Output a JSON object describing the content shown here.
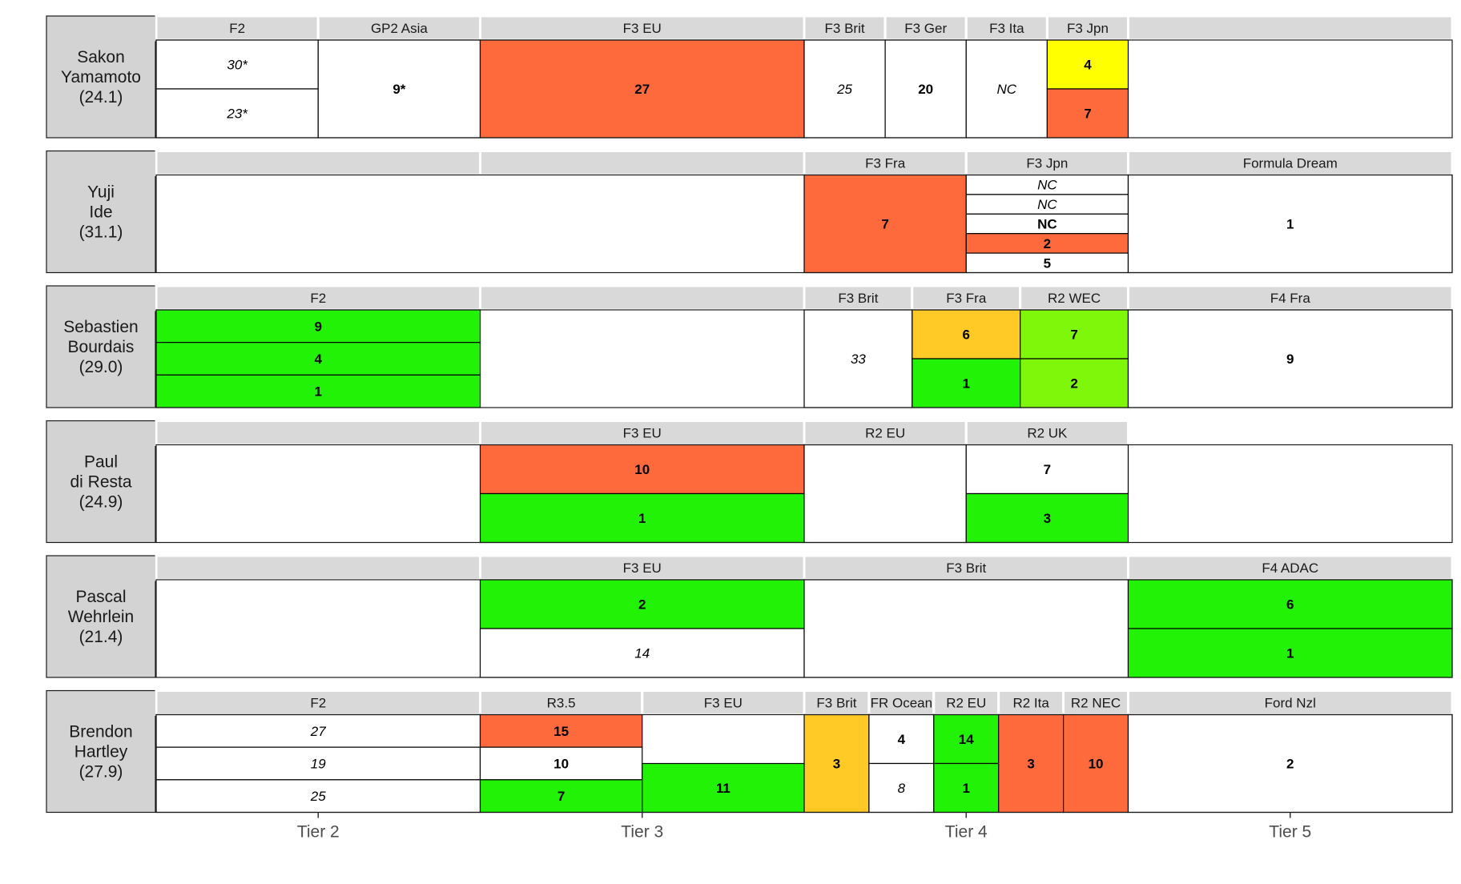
{
  "chart_data": {
    "type": "table",
    "x_axis": {
      "categories": [
        "Tier 2",
        "Tier 3",
        "Tier 4",
        "Tier 5"
      ]
    },
    "colors": {
      "orange": "#FF6A3D",
      "yellow": "#FFFF00",
      "gold": "#FFC926",
      "green": "#21F206",
      "lime": "#7FF70A",
      "white": "#FFFFFF",
      "strip": "#D9D9D9",
      "label_box": "#D3D3D3"
    },
    "drivers": [
      {
        "name_line1": "Sakon",
        "name_line2": "Yamamoto",
        "age": "(24.1)",
        "headers": [
          {
            "label": "F2",
            "from": 1.5,
            "to": 2.0
          },
          {
            "label": "GP2 Asia",
            "from": 2.0,
            "to": 2.5
          },
          {
            "label": "F3 EU",
            "from": 2.5,
            "to": 3.5
          },
          {
            "label": "F3 Brit",
            "from": 3.5,
            "to": 3.75
          },
          {
            "label": "F3 Ger",
            "from": 3.75,
            "to": 4.0
          },
          {
            "label": "F3 Ita",
            "from": 4.0,
            "to": 4.25
          },
          {
            "label": "F3 Jpn",
            "from": 4.25,
            "to": 4.5
          },
          {
            "label": "",
            "from": 4.5,
            "to": 5.5
          }
        ],
        "cells": [
          {
            "from": 1.5,
            "to": 2.0,
            "r0": 0,
            "r1": 0.5,
            "text": "30*",
            "style": "italic",
            "color": "white"
          },
          {
            "from": 1.5,
            "to": 2.0,
            "r0": 0.5,
            "r1": 1,
            "text": "23*",
            "style": "italic",
            "color": "white"
          },
          {
            "from": 2.0,
            "to": 2.5,
            "r0": 0,
            "r1": 1,
            "text": "9*",
            "style": "bold",
            "color": "white"
          },
          {
            "from": 2.5,
            "to": 3.5,
            "r0": 0,
            "r1": 1,
            "text": "27",
            "style": "bold",
            "color": "orange"
          },
          {
            "from": 3.5,
            "to": 3.75,
            "r0": 0,
            "r1": 1,
            "text": "25",
            "style": "italic",
            "color": "white"
          },
          {
            "from": 3.75,
            "to": 4.0,
            "r0": 0,
            "r1": 1,
            "text": "20",
            "style": "bold",
            "color": "white"
          },
          {
            "from": 4.0,
            "to": 4.25,
            "r0": 0,
            "r1": 1,
            "text": "NC",
            "style": "italic",
            "color": "white"
          },
          {
            "from": 4.25,
            "to": 4.5,
            "r0": 0,
            "r1": 0.5,
            "text": "4",
            "style": "bold",
            "color": "yellow"
          },
          {
            "from": 4.25,
            "to": 4.5,
            "r0": 0.5,
            "r1": 1,
            "text": "7",
            "style": "bold",
            "color": "orange"
          }
        ]
      },
      {
        "name_line1": "Yuji",
        "name_line2": "Ide",
        "age": "(31.1)",
        "headers": [
          {
            "label": "",
            "from": 1.5,
            "to": 2.5
          },
          {
            "label": "",
            "from": 2.5,
            "to": 3.5
          },
          {
            "label": "F3 Fra",
            "from": 3.5,
            "to": 4.0
          },
          {
            "label": "F3 Jpn",
            "from": 4.0,
            "to": 4.5
          },
          {
            "label": "Formula Dream",
            "from": 4.5,
            "to": 5.5
          }
        ],
        "cells": [
          {
            "from": 3.5,
            "to": 4.0,
            "r0": 0,
            "r1": 1,
            "text": "7",
            "style": "bold",
            "color": "orange"
          },
          {
            "from": 4.0,
            "to": 4.5,
            "r0": 0,
            "r1": 0.2,
            "text": "NC",
            "style": "italic",
            "color": "white"
          },
          {
            "from": 4.0,
            "to": 4.5,
            "r0": 0.2,
            "r1": 0.4,
            "text": "NC",
            "style": "italic",
            "color": "white"
          },
          {
            "from": 4.0,
            "to": 4.5,
            "r0": 0.4,
            "r1": 0.6,
            "text": "NC",
            "style": "bold",
            "color": "white"
          },
          {
            "from": 4.0,
            "to": 4.5,
            "r0": 0.6,
            "r1": 0.8,
            "text": "2",
            "style": "bold",
            "color": "orange"
          },
          {
            "from": 4.0,
            "to": 4.5,
            "r0": 0.8,
            "r1": 1,
            "text": "5",
            "style": "bold",
            "color": "white"
          },
          {
            "from": 4.5,
            "to": 5.5,
            "r0": 0,
            "r1": 1,
            "text": "1",
            "style": "bold",
            "color": "white"
          }
        ]
      },
      {
        "name_line1": "Sebastien",
        "name_line2": "Bourdais",
        "age": "(29.0)",
        "headers": [
          {
            "label": "F2",
            "from": 1.5,
            "to": 2.5
          },
          {
            "label": "",
            "from": 2.5,
            "to": 3.5
          },
          {
            "label": "F3 Brit",
            "from": 3.5,
            "to": 3.8333
          },
          {
            "label": "F3 Fra",
            "from": 3.8333,
            "to": 4.1667
          },
          {
            "label": "R2 WEC",
            "from": 4.1667,
            "to": 4.5
          },
          {
            "label": "F4 Fra",
            "from": 4.5,
            "to": 5.5
          }
        ],
        "cells": [
          {
            "from": 1.5,
            "to": 2.5,
            "r0": 0,
            "r1": 0.3333,
            "text": "9",
            "style": "bold",
            "color": "green"
          },
          {
            "from": 1.5,
            "to": 2.5,
            "r0": 0.3333,
            "r1": 0.6667,
            "text": "4",
            "style": "bold",
            "color": "green"
          },
          {
            "from": 1.5,
            "to": 2.5,
            "r0": 0.6667,
            "r1": 1,
            "text": "1",
            "style": "bold",
            "color": "green"
          },
          {
            "from": 3.5,
            "to": 3.8333,
            "r0": 0,
            "r1": 1,
            "text": "33",
            "style": "italic",
            "color": "white"
          },
          {
            "from": 3.8333,
            "to": 4.1667,
            "r0": 0,
            "r1": 0.5,
            "text": "6",
            "style": "bold",
            "color": "gold"
          },
          {
            "from": 3.8333,
            "to": 4.1667,
            "r0": 0.5,
            "r1": 1,
            "text": "1",
            "style": "bold",
            "color": "green"
          },
          {
            "from": 4.1667,
            "to": 4.5,
            "r0": 0,
            "r1": 0.5,
            "text": "7",
            "style": "bold",
            "color": "lime"
          },
          {
            "from": 4.1667,
            "to": 4.5,
            "r0": 0.5,
            "r1": 1,
            "text": "2",
            "style": "bold",
            "color": "lime"
          },
          {
            "from": 4.5,
            "to": 5.5,
            "r0": 0,
            "r1": 1,
            "text": "9",
            "style": "bold",
            "color": "white"
          }
        ]
      },
      {
        "name_line1": "Paul",
        "name_line2": "di Resta",
        "age": "(24.9)",
        "headers": [
          {
            "label": "",
            "from": 1.5,
            "to": 2.5
          },
          {
            "label": "F3 EU",
            "from": 2.5,
            "to": 3.5
          },
          {
            "label": "R2 EU",
            "from": 3.5,
            "to": 4.0
          },
          {
            "label": "R2 UK",
            "from": 4.0,
            "to": 4.5
          }
        ],
        "cells": [
          {
            "from": 2.5,
            "to": 3.5,
            "r0": 0,
            "r1": 0.5,
            "text": "10",
            "style": "bold",
            "color": "orange"
          },
          {
            "from": 2.5,
            "to": 3.5,
            "r0": 0.5,
            "r1": 1,
            "text": "1",
            "style": "bold",
            "color": "green"
          },
          {
            "from": 3.5,
            "to": 4.0,
            "r0": 0,
            "r1": 1,
            "text": "",
            "style": "bold",
            "color": "white"
          },
          {
            "from": 4.0,
            "to": 4.5,
            "r0": 0,
            "r1": 0.5,
            "text": "7",
            "style": "bold",
            "color": "white"
          },
          {
            "from": 4.0,
            "to": 4.5,
            "r0": 0.5,
            "r1": 1,
            "text": "3",
            "style": "bold",
            "color": "green"
          }
        ]
      },
      {
        "name_line1": "Pascal",
        "name_line2": "Wehrlein",
        "age": "(21.4)",
        "headers": [
          {
            "label": "",
            "from": 1.5,
            "to": 2.5
          },
          {
            "label": "F3 EU",
            "from": 2.5,
            "to": 3.5
          },
          {
            "label": "F3 Brit",
            "from": 3.5,
            "to": 4.5
          },
          {
            "label": "F4 ADAC",
            "from": 4.5,
            "to": 5.5
          }
        ],
        "cells": [
          {
            "from": 2.5,
            "to": 3.5,
            "r0": 0,
            "r1": 0.5,
            "text": "2",
            "style": "bold",
            "color": "green"
          },
          {
            "from": 2.5,
            "to": 3.5,
            "r0": 0.5,
            "r1": 1,
            "text": "14",
            "style": "italic",
            "color": "white"
          },
          {
            "from": 3.5,
            "to": 4.5,
            "r0": 0,
            "r1": 1,
            "text": "",
            "style": "bold",
            "color": "white"
          },
          {
            "from": 4.5,
            "to": 5.5,
            "r0": 0,
            "r1": 0.5,
            "text": "6",
            "style": "bold",
            "color": "green"
          },
          {
            "from": 4.5,
            "to": 5.5,
            "r0": 0.5,
            "r1": 1,
            "text": "1",
            "style": "bold",
            "color": "green"
          }
        ]
      },
      {
        "name_line1": "Brendon",
        "name_line2": "Hartley",
        "age": "(27.9)",
        "headers": [
          {
            "label": "F2",
            "from": 1.5,
            "to": 2.5
          },
          {
            "label": "R3.5",
            "from": 2.5,
            "to": 3.0
          },
          {
            "label": "F3 EU",
            "from": 3.0,
            "to": 3.5
          },
          {
            "label": "F3 Brit",
            "from": 3.5,
            "to": 3.7
          },
          {
            "label": "FR Ocean",
            "from": 3.7,
            "to": 3.9
          },
          {
            "label": "R2 EU",
            "from": 3.9,
            "to": 4.1
          },
          {
            "label": "R2 Ita",
            "from": 4.1,
            "to": 4.3
          },
          {
            "label": "R2 NEC",
            "from": 4.3,
            "to": 4.5
          },
          {
            "label": "Ford Nzl",
            "from": 4.5,
            "to": 5.5
          }
        ],
        "cells": [
          {
            "from": 1.5,
            "to": 2.5,
            "r0": 0,
            "r1": 0.3333,
            "text": "27",
            "style": "italic",
            "color": "white"
          },
          {
            "from": 1.5,
            "to": 2.5,
            "r0": 0.3333,
            "r1": 0.6667,
            "text": "19",
            "style": "italic",
            "color": "white"
          },
          {
            "from": 1.5,
            "to": 2.5,
            "r0": 0.6667,
            "r1": 1,
            "text": "25",
            "style": "italic",
            "color": "white"
          },
          {
            "from": 2.5,
            "to": 3.0,
            "r0": 0,
            "r1": 0.3333,
            "text": "15",
            "style": "bold",
            "color": "orange"
          },
          {
            "from": 2.5,
            "to": 3.0,
            "r0": 0.3333,
            "r1": 0.6667,
            "text": "10",
            "style": "bold",
            "color": "white"
          },
          {
            "from": 2.5,
            "to": 3.0,
            "r0": 0.6667,
            "r1": 1,
            "text": "7",
            "style": "bold",
            "color": "green"
          },
          {
            "from": 3.0,
            "to": 3.5,
            "r0": 0.5,
            "r1": 1,
            "text": "11",
            "style": "bold",
            "color": "green"
          },
          {
            "from": 3.5,
            "to": 3.7,
            "r0": 0,
            "r1": 1,
            "text": "3",
            "style": "bold",
            "color": "gold"
          },
          {
            "from": 3.7,
            "to": 3.9,
            "r0": 0,
            "r1": 0.5,
            "text": "4",
            "style": "bold",
            "color": "white"
          },
          {
            "from": 3.7,
            "to": 3.9,
            "r0": 0.5,
            "r1": 1,
            "text": "8",
            "style": "italic",
            "color": "white"
          },
          {
            "from": 3.9,
            "to": 4.1,
            "r0": 0,
            "r1": 0.5,
            "text": "14",
            "style": "bold",
            "color": "green"
          },
          {
            "from": 3.9,
            "to": 4.1,
            "r0": 0.5,
            "r1": 1,
            "text": "1",
            "style": "bold",
            "color": "green"
          },
          {
            "from": 4.1,
            "to": 4.3,
            "r0": 0,
            "r1": 1,
            "text": "3",
            "style": "bold",
            "color": "orange"
          },
          {
            "from": 4.3,
            "to": 4.5,
            "r0": 0,
            "r1": 1,
            "text": "10",
            "style": "bold",
            "color": "orange"
          },
          {
            "from": 4.5,
            "to": 5.5,
            "r0": 0,
            "r1": 1,
            "text": "2",
            "style": "bold",
            "color": "white"
          }
        ]
      }
    ]
  }
}
